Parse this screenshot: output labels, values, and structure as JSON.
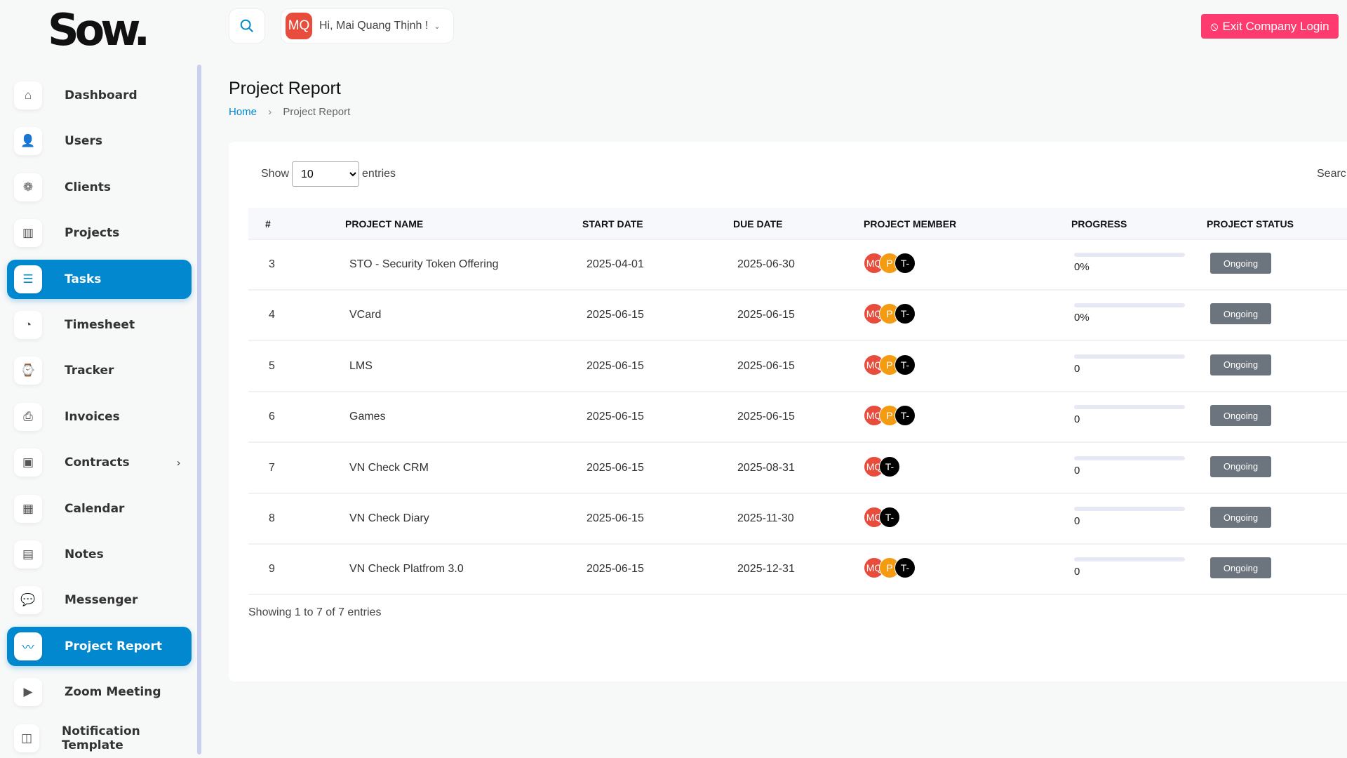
{
  "logo": "Sow.",
  "header": {
    "greeting": "Hi, Mai Quang Thịnh !",
    "avatar_initials": "MQ",
    "exit_label": "Exit Company Login",
    "exit_color": "#ff3a6e"
  },
  "sidebar": {
    "items": [
      {
        "label": "Dashboard",
        "icon": "home-icon",
        "glyph": "⌂"
      },
      {
        "label": "Users",
        "icon": "user-icon",
        "glyph": "👤"
      },
      {
        "label": "Clients",
        "icon": "clients-icon",
        "glyph": "❁"
      },
      {
        "label": "Projects",
        "icon": "projects-icon",
        "glyph": "▥"
      },
      {
        "label": "Tasks",
        "icon": "list-icon",
        "glyph": "☰",
        "active": true
      },
      {
        "label": "Timesheet",
        "icon": "clock-icon",
        "glyph": "◔"
      },
      {
        "label": "Tracker",
        "icon": "watch-icon",
        "glyph": "⌚"
      },
      {
        "label": "Invoices",
        "icon": "printer-icon",
        "glyph": "⎙"
      },
      {
        "label": "Contracts",
        "icon": "save-icon",
        "glyph": "▣",
        "submenu": true
      },
      {
        "label": "Calendar",
        "icon": "calendar-icon",
        "glyph": "▦"
      },
      {
        "label": "Notes",
        "icon": "clipboard-icon",
        "glyph": "▤"
      },
      {
        "label": "Messenger",
        "icon": "chat-icon",
        "glyph": "💬"
      },
      {
        "label": "Project Report",
        "icon": "chart-icon",
        "glyph": "〰",
        "active": true
      },
      {
        "label": "Zoom Meeting",
        "icon": "video-icon",
        "glyph": "▶"
      },
      {
        "label": "Notification Template",
        "icon": "notification-icon",
        "glyph": "◫"
      }
    ]
  },
  "page": {
    "title": "Project Report",
    "breadcrumb": {
      "home": "Home",
      "current": "Project Report"
    }
  },
  "table_controls": {
    "show_label": "Show",
    "entries_label": "entries",
    "page_size": "10",
    "search_label": "Searc"
  },
  "table": {
    "columns": [
      "#",
      "PROJECT NAME",
      "START DATE",
      "DUE DATE",
      "PROJECT MEMBER",
      "PROGRESS",
      "PROJECT STATUS"
    ],
    "rows": [
      {
        "id": "3",
        "name": "STO - Security Token Offering",
        "start": "2025-04-01",
        "due": "2025-06-30",
        "members": [
          "MQ",
          "P",
          "T-"
        ],
        "progress": 0,
        "progress_label": "0%",
        "status": "Ongoing"
      },
      {
        "id": "4",
        "name": "VCard",
        "start": "2025-06-15",
        "due": "2025-06-15",
        "members": [
          "MQ",
          "P",
          "T-"
        ],
        "progress": 0,
        "progress_label": "0%",
        "status": "Ongoing"
      },
      {
        "id": "5",
        "name": "LMS",
        "start": "2025-06-15",
        "due": "2025-06-15",
        "members": [
          "MQ",
          "P",
          "T-"
        ],
        "progress": 0,
        "progress_label": "0",
        "status": "Ongoing"
      },
      {
        "id": "6",
        "name": "Games",
        "start": "2025-06-15",
        "due": "2025-06-15",
        "members": [
          "MQ",
          "P",
          "T-"
        ],
        "progress": 0,
        "progress_label": "0",
        "status": "Ongoing"
      },
      {
        "id": "7",
        "name": "VN Check CRM",
        "start": "2025-06-15",
        "due": "2025-08-31",
        "members": [
          "MQ",
          "T-"
        ],
        "progress": 0,
        "progress_label": "0",
        "status": "Ongoing"
      },
      {
        "id": "8",
        "name": "VN Check Diary",
        "start": "2025-06-15",
        "due": "2025-11-30",
        "members": [
          "MQ",
          "T-"
        ],
        "progress": 0,
        "progress_label": "0",
        "status": "Ongoing"
      },
      {
        "id": "9",
        "name": "VN Check Platfrom 3.0",
        "start": "2025-06-15",
        "due": "2025-12-31",
        "members": [
          "MQ",
          "P",
          "T-"
        ],
        "progress": 0,
        "progress_label": "0",
        "status": "Ongoing"
      }
    ]
  },
  "member_colors": {
    "MQ": "#e74c3c",
    "P": "#f39c12",
    "T-": "#000000"
  },
  "table_info": "Showing 1 to 7 of 7 entries"
}
